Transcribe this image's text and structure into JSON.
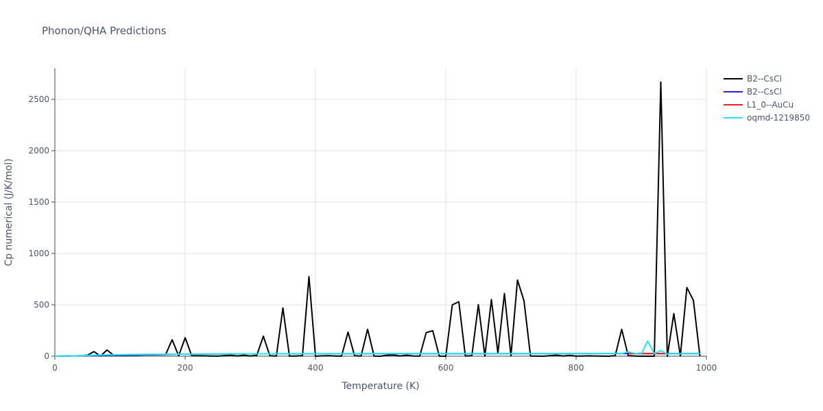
{
  "chart_data": {
    "type": "line",
    "title": "Phonon/QHA Predictions",
    "xlabel": "Temperature (K)",
    "ylabel": "Cp numerical (J/K/mol)",
    "xlim": [
      0,
      1000
    ],
    "ylim": [
      0,
      2800
    ],
    "xticks": [
      0,
      200,
      400,
      600,
      800,
      1000
    ],
    "yticks": [
      0,
      500,
      1000,
      1500,
      2000,
      2500
    ],
    "grid": true,
    "legend_position": "right",
    "series": [
      {
        "name": "B2--CsCl",
        "color": "#000000",
        "x": [
          0,
          10,
          20,
          30,
          40,
          50,
          60,
          70,
          80,
          90,
          100,
          110,
          120,
          130,
          140,
          150,
          160,
          170,
          180,
          190,
          200,
          210,
          220,
          230,
          240,
          250,
          260,
          270,
          280,
          290,
          300,
          310,
          320,
          330,
          340,
          350,
          360,
          370,
          380,
          390,
          400,
          410,
          420,
          430,
          440,
          450,
          460,
          470,
          480,
          490,
          500,
          510,
          520,
          530,
          540,
          550,
          560,
          570,
          580,
          590,
          600,
          610,
          620,
          630,
          640,
          650,
          660,
          670,
          680,
          690,
          700,
          710,
          720,
          730,
          740,
          750,
          760,
          770,
          780,
          790,
          800,
          810,
          820,
          830,
          840,
          850,
          860,
          870,
          880,
          890,
          900,
          910,
          920,
          930,
          940,
          950,
          960,
          970,
          980,
          990
        ],
        "y": [
          0,
          1,
          2,
          3,
          5,
          10,
          45,
          2,
          60,
          10,
          8,
          10,
          11,
          12,
          13,
          14,
          15,
          16,
          160,
          3,
          180,
          5,
          4,
          3,
          2,
          1,
          5,
          10,
          2,
          10,
          2,
          10,
          195,
          4,
          2,
          470,
          1,
          2,
          5,
          775,
          0,
          3,
          5,
          2,
          1,
          235,
          4,
          2,
          262,
          1,
          0,
          10,
          12,
          2,
          10,
          2,
          1,
          230,
          248,
          1,
          0,
          500,
          530,
          2,
          5,
          502,
          1,
          552,
          30,
          610,
          2,
          742,
          540,
          2,
          1,
          0,
          5,
          10,
          2,
          8,
          1,
          2,
          3,
          2,
          1,
          0,
          5,
          262,
          5,
          2,
          0,
          0,
          0,
          2668,
          0,
          415,
          2,
          668,
          545,
          2
        ]
      },
      {
        "name": "B2--CsCl",
        "color": "#1f1fe8",
        "x": [
          0,
          100,
          200,
          300,
          400,
          500,
          600,
          700,
          800,
          900,
          990
        ],
        "y": [
          0,
          10,
          20,
          23,
          24,
          25,
          25,
          25,
          26,
          26,
          26
        ]
      },
      {
        "name": "L1_0--AuCu",
        "color": "#e82020",
        "x": [
          880,
          890,
          900,
          910,
          920,
          930,
          940
        ],
        "y": [
          25,
          25,
          25,
          25,
          25,
          25,
          25
        ]
      },
      {
        "name": "oqmd-1219850",
        "color": "#22e6ec",
        "x": [
          0,
          20,
          40,
          60,
          80,
          100,
          120,
          140,
          160,
          180,
          200,
          250,
          300,
          350,
          400,
          500,
          600,
          700,
          800,
          850,
          870,
          880,
          890,
          900,
          910,
          920,
          930,
          940,
          950,
          960,
          970,
          980,
          990
        ],
        "y": [
          0,
          2,
          6,
          10,
          13,
          15,
          17,
          18,
          19,
          20,
          21,
          22,
          23,
          24,
          24,
          25,
          25,
          25,
          25,
          26,
          26,
          42,
          28,
          20,
          148,
          25,
          55,
          22,
          25,
          24,
          25,
          25,
          25
        ]
      }
    ]
  }
}
